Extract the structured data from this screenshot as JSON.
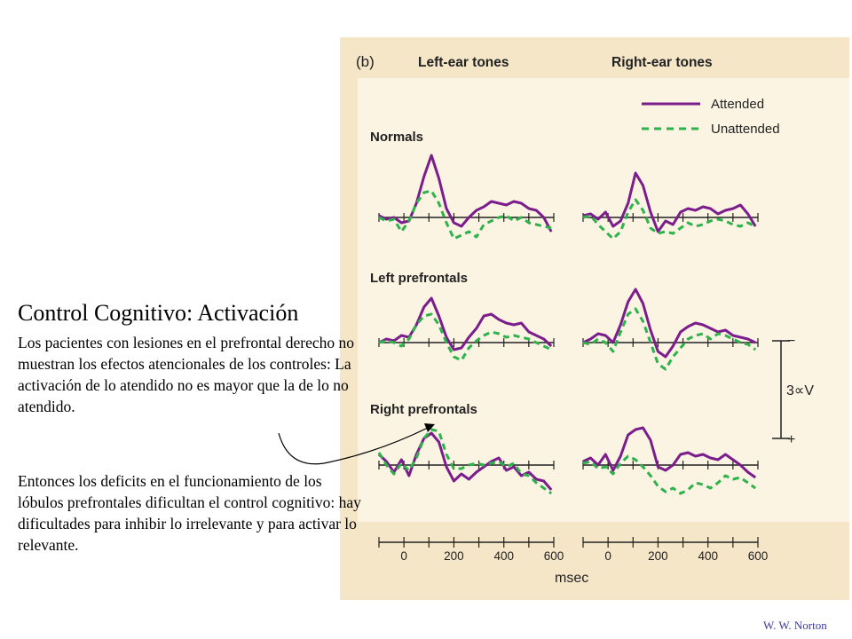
{
  "slide": {
    "title": "Control Cognitivo: Activación",
    "paragraph1": "Los pacientes con lesiones en el prefrontal derecho no muestran los efectos atencionales de los controles: La activación de lo atendido no es mayor que la de lo no atendido.",
    "paragraph2": "Entonces los deficits en el funcionamiento de los lóbulos prefrontales dificultan el control cognitivo: hay dificultades para inhibir lo irrelevante y para activar lo relevante.",
    "credit": "W. W. Norton"
  },
  "colors": {
    "panel_bg": "#f5e6c8",
    "inner_bg": "#fbf4e3",
    "attended": "#7b1e8c",
    "unattended": "#2db34a"
  },
  "chart_data": {
    "type": "line",
    "panel_label": "(b)",
    "column_titles": [
      "Left-ear tones",
      "Right-ear tones"
    ],
    "row_labels": [
      "Normals",
      "Left prefrontals",
      "Right prefrontals"
    ],
    "legend": {
      "position": "top-right",
      "entries": [
        "Attended",
        "Unattended"
      ]
    },
    "xlabel": "msec",
    "x_ticks": [
      0,
      200,
      400,
      600
    ],
    "xlim": [
      -100,
      600
    ],
    "scale_bar": {
      "label": "3∝V",
      "top_label": "−",
      "bottom_label": "+"
    },
    "panels": [
      {
        "group": "Normals",
        "ear": "Left-ear tones",
        "x": [
          -100,
          -70,
          -40,
          -10,
          20,
          50,
          80,
          110,
          140,
          170,
          200,
          230,
          260,
          290,
          320,
          350,
          380,
          410,
          440,
          470,
          500,
          530,
          560,
          590
        ],
        "series": [
          {
            "name": "Attended",
            "values": [
              0.1,
              -0.1,
              0.0,
              -0.3,
              -0.2,
              0.8,
              2.3,
              3.5,
              2.2,
              0.5,
              -0.3,
              -0.5,
              0.0,
              0.4,
              0.6,
              0.9,
              0.8,
              0.7,
              0.9,
              0.8,
              0.5,
              0.4,
              0.0,
              -0.8
            ]
          },
          {
            "name": "Unattended",
            "values": [
              0.0,
              -0.2,
              -0.1,
              -0.8,
              -0.2,
              0.8,
              1.4,
              1.5,
              0.8,
              -0.3,
              -1.2,
              -1.0,
              -0.8,
              -1.1,
              -0.4,
              -0.2,
              0.0,
              0.1,
              -0.2,
              0.0,
              -0.3,
              -0.4,
              -0.5,
              -0.6
            ]
          }
        ]
      },
      {
        "group": "Normals",
        "ear": "Right-ear tones",
        "x": [
          -100,
          -70,
          -40,
          -10,
          20,
          50,
          80,
          110,
          140,
          170,
          200,
          230,
          260,
          290,
          320,
          350,
          380,
          410,
          440,
          470,
          500,
          530,
          560,
          590
        ],
        "series": [
          {
            "name": "Attended",
            "values": [
              0.1,
              0.2,
              -0.1,
              0.3,
              -0.5,
              -0.2,
              0.8,
              2.5,
              1.8,
              0.3,
              -0.8,
              -0.2,
              -0.4,
              0.3,
              0.5,
              0.4,
              0.6,
              0.5,
              0.2,
              0.4,
              0.5,
              0.7,
              0.2,
              -0.5
            ]
          },
          {
            "name": "Unattended",
            "values": [
              0.0,
              0.1,
              -0.4,
              -0.8,
              -1.2,
              -0.8,
              0.3,
              1.0,
              0.4,
              -0.6,
              -0.9,
              -0.8,
              -0.9,
              -0.6,
              -0.3,
              -0.5,
              -0.4,
              -0.2,
              -0.1,
              -0.2,
              -0.4,
              -0.5,
              -0.3,
              -0.5
            ]
          }
        ]
      },
      {
        "group": "Left prefrontals",
        "ear": "Left-ear tones",
        "x": [
          -100,
          -70,
          -40,
          -10,
          20,
          50,
          80,
          110,
          140,
          170,
          200,
          230,
          260,
          290,
          320,
          350,
          380,
          410,
          440,
          470,
          500,
          530,
          560,
          590
        ],
        "series": [
          {
            "name": "Attended",
            "values": [
              0.0,
              0.2,
              0.1,
              0.4,
              0.3,
              1.0,
              2.0,
              2.5,
              1.5,
              0.3,
              -0.4,
              -0.3,
              0.3,
              0.8,
              1.5,
              1.6,
              1.3,
              1.1,
              1.0,
              1.1,
              0.6,
              0.4,
              0.2,
              -0.2
            ]
          },
          {
            "name": "Unattended",
            "values": [
              0.0,
              0.1,
              0.0,
              -0.2,
              0.2,
              1.0,
              1.5,
              1.6,
              1.0,
              0.0,
              -0.8,
              -1.0,
              -0.3,
              0.1,
              0.4,
              0.6,
              0.5,
              0.3,
              0.4,
              0.3,
              0.2,
              0.0,
              -0.2,
              -0.4
            ]
          }
        ]
      },
      {
        "group": "Left prefrontals",
        "ear": "Right-ear tones",
        "x": [
          -100,
          -70,
          -40,
          -10,
          20,
          50,
          80,
          110,
          140,
          170,
          200,
          230,
          260,
          290,
          320,
          350,
          380,
          410,
          440,
          470,
          500,
          530,
          560,
          590
        ],
        "series": [
          {
            "name": "Attended",
            "values": [
              0.0,
              0.2,
              0.5,
              0.4,
              0.0,
              1.0,
              2.3,
              3.0,
              2.2,
              0.7,
              -0.5,
              -0.8,
              -0.2,
              0.6,
              0.9,
              1.1,
              1.0,
              0.8,
              0.6,
              0.7,
              0.4,
              0.3,
              0.2,
              0.0
            ]
          },
          {
            "name": "Unattended",
            "values": [
              0.0,
              -0.1,
              0.2,
              0.0,
              -0.5,
              0.6,
              1.6,
              1.9,
              1.2,
              0.0,
              -1.2,
              -1.5,
              -0.8,
              -0.3,
              0.2,
              0.4,
              0.5,
              0.2,
              0.5,
              0.4,
              0.2,
              0.0,
              -0.1,
              -0.4
            ]
          }
        ]
      },
      {
        "group": "Right prefrontals",
        "ear": "Left-ear tones",
        "x": [
          -100,
          -70,
          -40,
          -10,
          20,
          50,
          80,
          110,
          140,
          170,
          200,
          230,
          260,
          290,
          320,
          350,
          380,
          410,
          440,
          470,
          500,
          530,
          560,
          590
        ],
        "series": [
          {
            "name": "Attended",
            "values": [
              0.6,
              0.2,
              -0.4,
              0.3,
              -0.6,
              0.6,
              1.5,
              1.8,
              1.3,
              -0.1,
              -0.9,
              -0.5,
              -0.8,
              -0.4,
              -0.1,
              0.2,
              0.4,
              -0.3,
              -0.1,
              -0.6,
              -0.4,
              -0.8,
              -0.9,
              -1.4
            ]
          },
          {
            "name": "Unattended",
            "values": [
              0.7,
              0.0,
              -0.5,
              0.1,
              -0.3,
              0.4,
              1.5,
              2.0,
              1.9,
              0.6,
              -0.2,
              -0.2,
              0.0,
              0.1,
              0.0,
              0.1,
              0.2,
              -0.1,
              0.1,
              -0.5,
              -0.6,
              -1.0,
              -1.3,
              -1.6
            ]
          }
        ]
      },
      {
        "group": "Right prefrontals",
        "ear": "Right-ear tones",
        "x": [
          -100,
          -70,
          -40,
          -10,
          20,
          50,
          80,
          110,
          140,
          170,
          200,
          230,
          260,
          290,
          320,
          350,
          380,
          410,
          440,
          470,
          500,
          530,
          560,
          590
        ],
        "series": [
          {
            "name": "Attended",
            "values": [
              0.2,
              0.4,
              0.0,
              0.6,
              -0.3,
              0.5,
              1.7,
              2.0,
              2.1,
              1.4,
              -0.1,
              -0.3,
              0.0,
              0.6,
              0.7,
              0.5,
              0.6,
              0.4,
              0.3,
              0.6,
              0.3,
              0.0,
              -0.4,
              -0.7
            ]
          },
          {
            "name": "Unattended",
            "values": [
              0.1,
              0.2,
              -0.2,
              -0.1,
              -0.5,
              0.1,
              0.5,
              0.3,
              -0.1,
              -0.6,
              -1.2,
              -1.5,
              -1.3,
              -1.6,
              -1.4,
              -1.0,
              -1.1,
              -1.3,
              -1.0,
              -0.6,
              -0.8,
              -0.7,
              -1.0,
              -1.3
            ]
          }
        ]
      }
    ]
  }
}
